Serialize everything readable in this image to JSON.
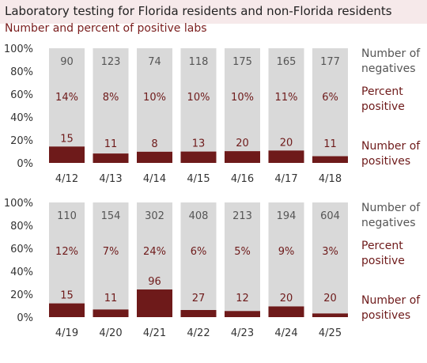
{
  "title": "Laboratory testing for Florida residents and non-Florida residents",
  "subtitle": "Number and percent of positive labs",
  "legend": {
    "negatives": [
      "Number of",
      "negatives"
    ],
    "percent": [
      "Percent",
      "positive"
    ],
    "positives": [
      "Number of",
      "positives"
    ]
  },
  "colors": {
    "negative": "#d9d9d9",
    "positive": "#6e1a1a"
  },
  "chart_data": [
    {
      "type": "bar",
      "stacked": true,
      "ylim": [
        0,
        100
      ],
      "yticks": [
        "0%",
        "20%",
        "40%",
        "60%",
        "80%",
        "100%"
      ],
      "categories": [
        "4/12",
        "4/13",
        "4/14",
        "4/15",
        "4/16",
        "4/17",
        "4/18"
      ],
      "negatives": [
        90,
        123,
        74,
        118,
        175,
        165,
        177
      ],
      "positives": [
        15,
        11,
        8,
        13,
        20,
        20,
        11
      ],
      "percent_positive": [
        "14%",
        "8%",
        "10%",
        "10%",
        "10%",
        "11%",
        "6%"
      ]
    },
    {
      "type": "bar",
      "stacked": true,
      "ylim": [
        0,
        100
      ],
      "yticks": [
        "0%",
        "20%",
        "40%",
        "60%",
        "80%",
        "100%"
      ],
      "categories": [
        "4/19",
        "4/20",
        "4/21",
        "4/22",
        "4/23",
        "4/24",
        "4/25"
      ],
      "negatives": [
        110,
        154,
        302,
        408,
        213,
        194,
        604
      ],
      "positives": [
        15,
        11,
        96,
        27,
        12,
        20,
        20
      ],
      "percent_positive": [
        "12%",
        "7%",
        "24%",
        "6%",
        "5%",
        "9%",
        "3%"
      ]
    }
  ]
}
